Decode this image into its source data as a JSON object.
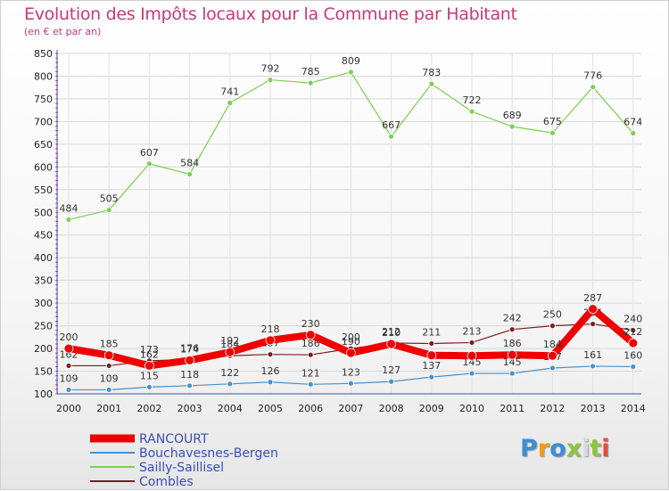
{
  "header": {
    "title": "Evolution des Impôts locaux pour la Commune par Habitant",
    "subtitle": "(en € et par an)"
  },
  "logo": {
    "text": "Proxiti",
    "colors": [
      "#3a8fd6",
      "#f39c12",
      "#3a8fd6",
      "#8dc63f",
      "#d9d9d9",
      "#8dc63f",
      "#e74c3c"
    ]
  },
  "chart_data": {
    "type": "line",
    "categories": [
      "2000",
      "2001",
      "2002",
      "2003",
      "2004",
      "2005",
      "2006",
      "2007",
      "2008",
      "2009",
      "2010",
      "2011",
      "2012",
      "2013",
      "2014"
    ],
    "ylim": [
      100,
      850
    ],
    "yticks": [
      100,
      150,
      200,
      250,
      300,
      350,
      400,
      450,
      500,
      550,
      600,
      650,
      700,
      750,
      800,
      850
    ],
    "grid": true,
    "legend_position": "bottom-left",
    "series": [
      {
        "name": "Sailly-Saillisel",
        "color": "#7ccf4f",
        "width": 1.2,
        "values": [
          484,
          505,
          607,
          584,
          741,
          792,
          785,
          809,
          667,
          783,
          722,
          689,
          675,
          776,
          674
        ],
        "labels": [
          "484",
          "505",
          "607",
          "584",
          "741",
          "792",
          "785",
          "809",
          "667",
          "783",
          "722",
          "689",
          "675",
          "776",
          "674"
        ]
      },
      {
        "name": "Combles",
        "color": "#7a1e22",
        "width": 1.2,
        "values": [
          162,
          162,
          173,
          176,
          184,
          187,
          186,
          200,
          212,
          211,
          213,
          242,
          250,
          254,
          240
        ],
        "labels": [
          "162",
          "",
          "173",
          "176",
          "184",
          "187",
          "186",
          "200",
          "212",
          "211",
          "213",
          "242",
          "250",
          "254",
          "240"
        ]
      },
      {
        "name": "Bouchavesnes-Bergen",
        "color": "#4a90c8",
        "width": 1.2,
        "values": [
          109,
          109,
          115,
          118,
          122,
          126,
          121,
          123,
          127,
          137,
          145,
          145,
          157,
          161,
          160
        ],
        "labels": [
          "109",
          "109",
          "115",
          "118",
          "122",
          "126",
          "121",
          "123",
          "127",
          "137",
          "145",
          "145",
          "157",
          "161",
          "160"
        ]
      },
      {
        "name": "RANCOURT",
        "color": "#ee0000",
        "width": 8,
        "values": [
          200,
          185,
          162,
          174,
          192,
          218,
          230,
          190,
          210,
          185,
          184,
          186,
          184,
          287,
          212
        ],
        "labels": [
          "200",
          "185",
          "162",
          "174",
          "192",
          "218",
          "230",
          "190",
          "210",
          "",
          "",
          "186",
          "184",
          "287",
          "212"
        ]
      }
    ],
    "legend_order": [
      "RANCOURT",
      "Bouchavesnes-Bergen",
      "Sailly-Saillisel",
      "Combles"
    ]
  }
}
